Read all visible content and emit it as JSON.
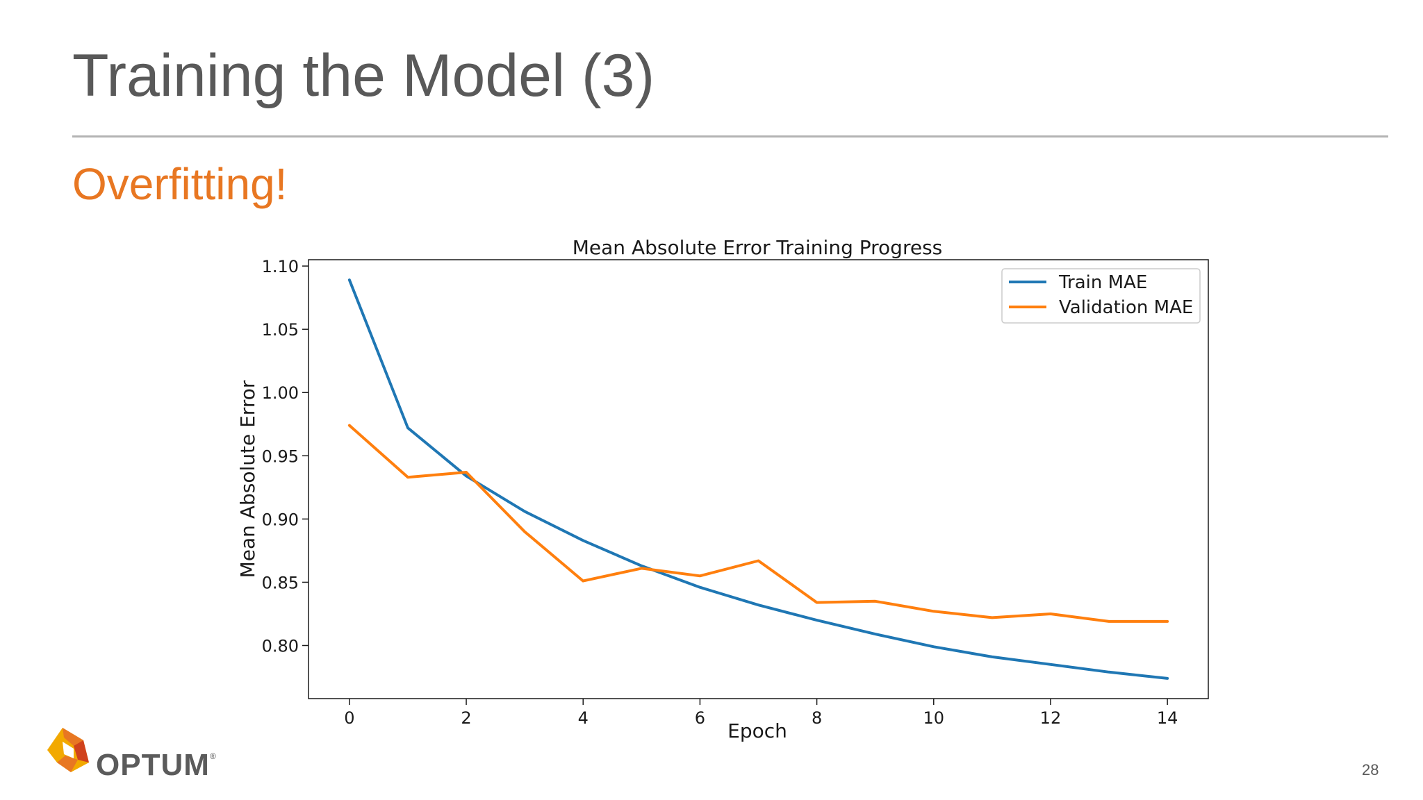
{
  "slide": {
    "title": "Training the Model (3)",
    "subtitle": "Overfitting!",
    "page_number": "28",
    "accent_color": "#e87722",
    "title_color": "#595959"
  },
  "logo": {
    "text": "OPTUM",
    "registered_mark": "®",
    "icon": "optum-logo-icon"
  },
  "chart_data": {
    "type": "line",
    "title": "Mean Absolute Error Training Progress",
    "xlabel": "Epoch",
    "ylabel": "Mean Absolute Error",
    "x": [
      0,
      1,
      2,
      3,
      4,
      5,
      6,
      7,
      8,
      9,
      10,
      11,
      12,
      13,
      14
    ],
    "xlim": [
      -0.7,
      14.7
    ],
    "ylim": [
      0.758,
      1.105
    ],
    "xticks": [
      0,
      2,
      4,
      6,
      8,
      10,
      12,
      14
    ],
    "xtick_labels": [
      "0",
      "2",
      "4",
      "6",
      "8",
      "10",
      "12",
      "14"
    ],
    "yticks": [
      0.8,
      0.85,
      0.9,
      0.95,
      1.0,
      1.05,
      1.1
    ],
    "ytick_labels": [
      "0.80",
      "0.85",
      "0.90",
      "0.95",
      "1.00",
      "1.05",
      "1.10"
    ],
    "grid": false,
    "legend_position": "top-right",
    "series": [
      {
        "name": "Train MAE",
        "color": "#1f77b4",
        "values": [
          1.089,
          0.972,
          0.934,
          0.906,
          0.883,
          0.863,
          0.846,
          0.832,
          0.82,
          0.809,
          0.799,
          0.791,
          0.785,
          0.779,
          0.774
        ]
      },
      {
        "name": "Validation MAE",
        "color": "#ff7f0e",
        "values": [
          0.974,
          0.933,
          0.937,
          0.89,
          0.851,
          0.861,
          0.855,
          0.867,
          0.834,
          0.835,
          0.827,
          0.822,
          0.825,
          0.819,
          0.819
        ]
      }
    ]
  }
}
